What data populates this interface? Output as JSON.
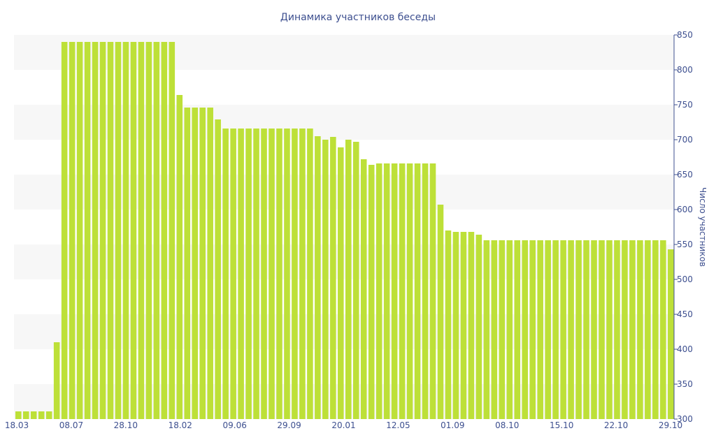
{
  "chart_data": {
    "type": "bar",
    "title": "Динамика участников беседы",
    "ylabel": "Число участников",
    "xlabel": "",
    "ylim": [
      300,
      850
    ],
    "y_ticks": [
      300,
      350,
      400,
      450,
      500,
      550,
      600,
      650,
      700,
      750,
      800,
      850
    ],
    "y_axis_position": "right",
    "grid": "alternating horizontal bands",
    "bar_color": "#bde038",
    "band_color": "#f7f7f7",
    "x_tick_labels": [
      "18.03",
      "08.07",
      "28.10",
      "18.02",
      "09.06",
      "29.09",
      "20.01",
      "12.05",
      "01.09",
      "08.10",
      "15.10",
      "22.10",
      "29.10"
    ],
    "values": [
      311,
      311,
      311,
      311,
      311,
      410,
      840,
      840,
      840,
      840,
      840,
      840,
      840,
      840,
      840,
      840,
      840,
      840,
      840,
      840,
      840,
      764,
      746,
      746,
      746,
      746,
      729,
      716,
      716,
      716,
      716,
      716,
      716,
      716,
      716,
      716,
      716,
      716,
      716,
      705,
      700,
      704,
      689,
      700,
      697,
      672,
      664,
      666,
      666,
      666,
      666,
      666,
      666,
      666,
      666,
      607,
      570,
      568,
      568,
      568,
      564,
      556,
      556,
      556,
      556,
      556,
      556,
      556,
      556,
      556,
      556,
      556,
      556,
      556,
      556,
      556,
      556,
      556,
      556,
      556,
      556,
      556,
      556,
      556,
      556,
      543
    ]
  }
}
